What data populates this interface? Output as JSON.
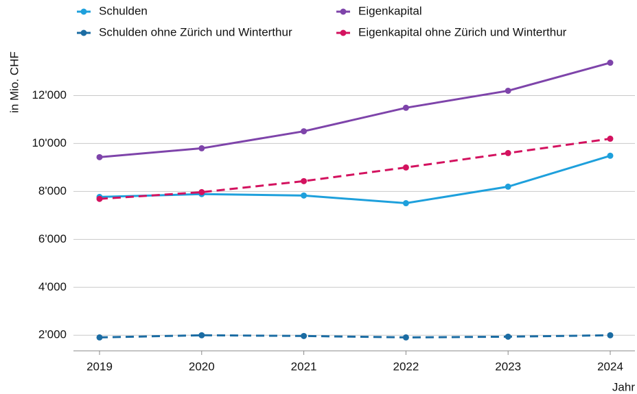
{
  "chart_data": {
    "type": "line",
    "y_label": "in Mio. CHF",
    "x_label": "Jahr",
    "categories": [
      "2019",
      "2020",
      "2021",
      "2022",
      "2023",
      "2024"
    ],
    "series": [
      {
        "name": "Schulden",
        "color": "#1ea0dc",
        "dashed": false,
        "values": [
          7770,
          7890,
          7830,
          7510,
          8200,
          9490
        ]
      },
      {
        "name": "Eigenkapital",
        "color": "#7e44aa",
        "dashed": false,
        "values": [
          9430,
          9800,
          10510,
          11490,
          12200,
          13370
        ]
      },
      {
        "name": "Schulden ohne Zürich und Winterthur",
        "color": "#1b6ca3",
        "dashed": true,
        "values": [
          1910,
          2000,
          1970,
          1910,
          1940,
          2000
        ]
      },
      {
        "name": "Eigenkapital ohne Zürich und Winterthur",
        "color": "#d3125f",
        "dashed": true,
        "values": [
          7690,
          7970,
          8430,
          9000,
          9600,
          10200
        ]
      }
    ],
    "ylim": [
      1350,
      13700
    ],
    "yticks": [
      {
        "value": 2000,
        "label": "2'000"
      },
      {
        "value": 4000,
        "label": "4'000"
      },
      {
        "value": 6000,
        "label": "6'000"
      },
      {
        "value": 8000,
        "label": "8'000"
      },
      {
        "value": 10000,
        "label": "10'000"
      },
      {
        "value": 12000,
        "label": "12'000"
      }
    ],
    "grid": true
  }
}
